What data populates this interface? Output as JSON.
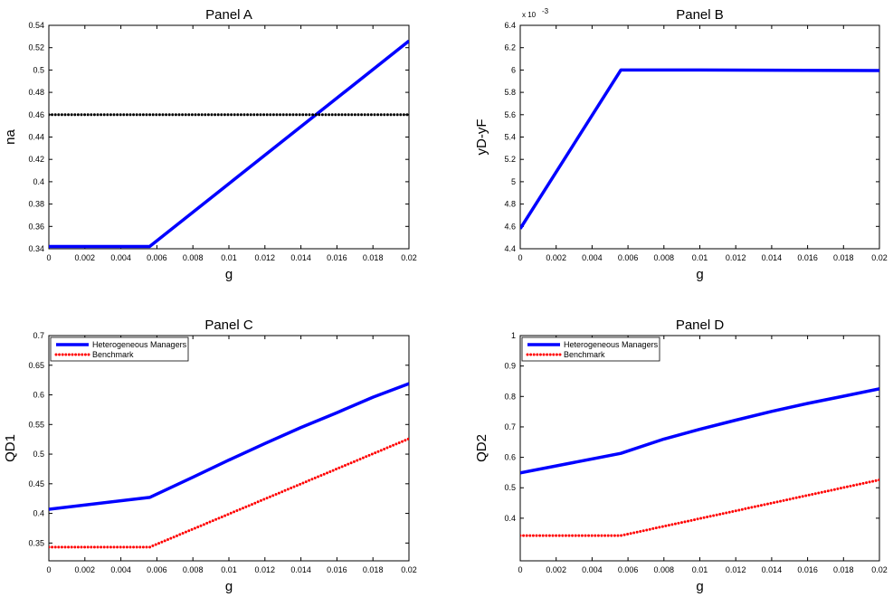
{
  "chart_data": [
    {
      "type": "line",
      "title": "Panel A",
      "xlabel": "g",
      "ylabel": "na",
      "xlim": [
        0,
        0.02
      ],
      "ylim": [
        0.34,
        0.54
      ],
      "xticks": [
        "0",
        "0.002",
        "0.004",
        "0.006",
        "0.008",
        "0.01",
        "0.012",
        "0.014",
        "0.016",
        "0.018",
        "0.02"
      ],
      "yticks": [
        "0.34",
        "0.36",
        "0.38",
        "0.4",
        "0.42",
        "0.44",
        "0.46",
        "0.48",
        "0.5",
        "0.52",
        "0.54"
      ],
      "legend": [],
      "series": [
        {
          "x": [
            0,
            0.0056,
            0.02
          ],
          "y": [
            0.342,
            0.342,
            0.526
          ],
          "color": "#0000ff",
          "style": "solid"
        },
        {
          "x": [
            0,
            0.02
          ],
          "y": [
            0.46,
            0.46
          ],
          "color": "#000000",
          "style": "dotted"
        }
      ]
    },
    {
      "type": "line",
      "title": "Panel B",
      "xlabel": "g",
      "ylabel": "yD-yF",
      "exponent_label": "x 10",
      "exponent_power": "-3",
      "xlim": [
        0,
        0.02
      ],
      "ylim": [
        4.4,
        6.4
      ],
      "xticks": [
        "0",
        "0.002",
        "0.004",
        "0.006",
        "0.008",
        "0.01",
        "0.012",
        "0.014",
        "0.016",
        "0.018",
        "0.02"
      ],
      "yticks": [
        "4.4",
        "4.6",
        "4.8",
        "5",
        "5.2",
        "5.4",
        "5.6",
        "5.8",
        "6",
        "6.2",
        "6.4"
      ],
      "legend": [],
      "series": [
        {
          "x": [
            0,
            0.0056,
            0.01,
            0.02
          ],
          "y": [
            4.58,
            6.0,
            6.0,
            5.995
          ],
          "color": "#0000ff",
          "style": "solid"
        }
      ]
    },
    {
      "type": "line",
      "title": "Panel C",
      "xlabel": "g",
      "ylabel": "QD1",
      "xlim": [
        0,
        0.02
      ],
      "ylim": [
        0.32,
        0.7
      ],
      "xticks": [
        "0",
        "0.002",
        "0.004",
        "0.006",
        "0.008",
        "0.01",
        "0.012",
        "0.014",
        "0.016",
        "0.018",
        "0.02"
      ],
      "yticks": [
        "0.35",
        "0.4",
        "0.45",
        "0.5",
        "0.55",
        "0.6",
        "0.65",
        "0.7"
      ],
      "legend": [
        "Heterogeneous Managers",
        "Benchmark"
      ],
      "series": [
        {
          "name": "Heterogeneous Managers",
          "x": [
            0,
            0.0056,
            0.008,
            0.01,
            0.012,
            0.014,
            0.016,
            0.018,
            0.02
          ],
          "y": [
            0.407,
            0.427,
            0.461,
            0.49,
            0.518,
            0.545,
            0.57,
            0.596,
            0.619
          ],
          "color": "#0000ff",
          "style": "solid"
        },
        {
          "name": "Benchmark",
          "x": [
            0,
            0.0056,
            0.02
          ],
          "y": [
            0.343,
            0.343,
            0.526
          ],
          "color": "#ff0000",
          "style": "dotted"
        }
      ]
    },
    {
      "type": "line",
      "title": "Panel D",
      "xlabel": "g",
      "ylabel": "QD2",
      "xlim": [
        0,
        0.02
      ],
      "ylim": [
        0.26,
        1.0
      ],
      "xticks": [
        "0",
        "0.002",
        "0.004",
        "0.006",
        "0.008",
        "0.01",
        "0.012",
        "0.014",
        "0.016",
        "0.018",
        "0.02"
      ],
      "yticks": [
        "0.4",
        "0.5",
        "0.6",
        "0.7",
        "0.8",
        "0.9",
        "1"
      ],
      "legend": [
        "Heterogeneous Managers",
        "Benchmark"
      ],
      "series": [
        {
          "name": "Heterogeneous Managers",
          "x": [
            0,
            0.0056,
            0.008,
            0.01,
            0.012,
            0.014,
            0.016,
            0.018,
            0.02
          ],
          "y": [
            0.549,
            0.613,
            0.66,
            0.692,
            0.722,
            0.751,
            0.777,
            0.801,
            0.825
          ],
          "color": "#0000ff",
          "style": "solid"
        },
        {
          "name": "Benchmark",
          "x": [
            0,
            0.0056,
            0.02
          ],
          "y": [
            0.343,
            0.343,
            0.526
          ],
          "color": "#ff0000",
          "style": "dotted"
        }
      ]
    }
  ]
}
